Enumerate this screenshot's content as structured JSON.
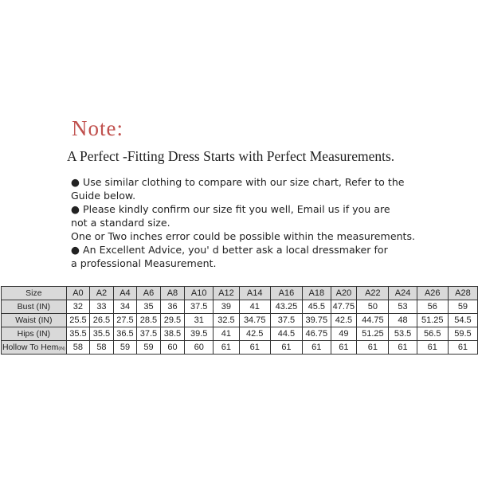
{
  "note": {
    "title": "Note:",
    "subtitle": "A Perfect -Fitting Dress Starts with Perfect Measurements."
  },
  "bullets": [
    "● Use similar clothing to compare with our size chart, Refer to the",
    "Guide below.",
    "● Please kindly confirm our size fit you well, Email us if you are",
    "not a standard size.",
    "One or Two inches error could be possible within the measurements.",
    "● An Excellent Advice, you' d better ask a local dressmaker for",
    "a professional Measurement."
  ],
  "table": {
    "header_label": "Size",
    "sizes": [
      "A0",
      "A2",
      "A4",
      "A6",
      "A8",
      "A10",
      "A12",
      "A14",
      "A16",
      "A18",
      "A20",
      "A22",
      "A24",
      "A26",
      "A28"
    ],
    "rows": [
      {
        "label": "Bust (IN)",
        "values": [
          "32",
          "33",
          "34",
          "35",
          "36",
          "37.5",
          "39",
          "41",
          "43.25",
          "45.5",
          "47.75",
          "50",
          "53",
          "56",
          "59"
        ]
      },
      {
        "label": "Waist (IN)",
        "values": [
          "25.5",
          "26.5",
          "27.5",
          "28.5",
          "29.5",
          "31",
          "32.5",
          "34.75",
          "37.5",
          "39.75",
          "42.5",
          "44.75",
          "48",
          "51.25",
          "54.5"
        ]
      },
      {
        "label": "Hips (IN)",
        "values": [
          "35.5",
          "35.5",
          "36.5",
          "37.5",
          "38.5",
          "39.5",
          "41",
          "42.5",
          "44.5",
          "46.75",
          "49",
          "51.25",
          "53.5",
          "56.5",
          "59.5"
        ]
      },
      {
        "label": "Hollow To Hem",
        "unit": "(IN)",
        "values": [
          "58",
          "58",
          "59",
          "59",
          "60",
          "60",
          "61",
          "61",
          "61",
          "61",
          "61",
          "61",
          "61",
          "61",
          "61"
        ]
      }
    ]
  },
  "colors": {
    "note": "#c0504d",
    "header_bg": "#d9d9d9"
  }
}
